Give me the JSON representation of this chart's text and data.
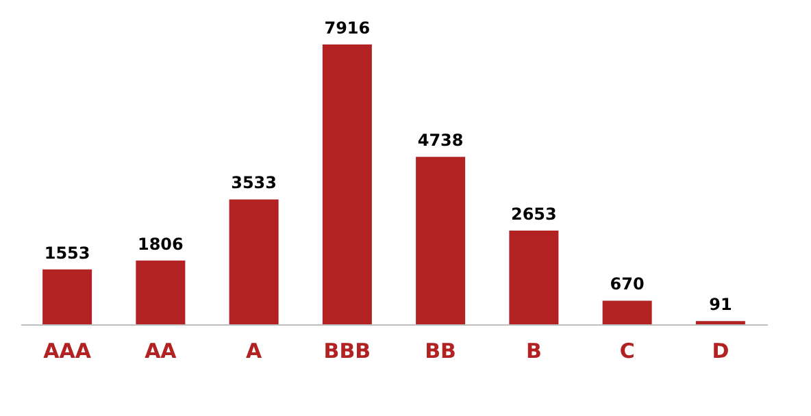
{
  "chart_data": {
    "type": "bar",
    "categories": [
      "AAA",
      "AA",
      "A",
      "BBB",
      "BB",
      "B",
      "C",
      "D"
    ],
    "values": [
      1553,
      1806,
      3533,
      7916,
      4738,
      2653,
      670,
      91
    ],
    "color": "#b22222",
    "data_labels": true
  }
}
